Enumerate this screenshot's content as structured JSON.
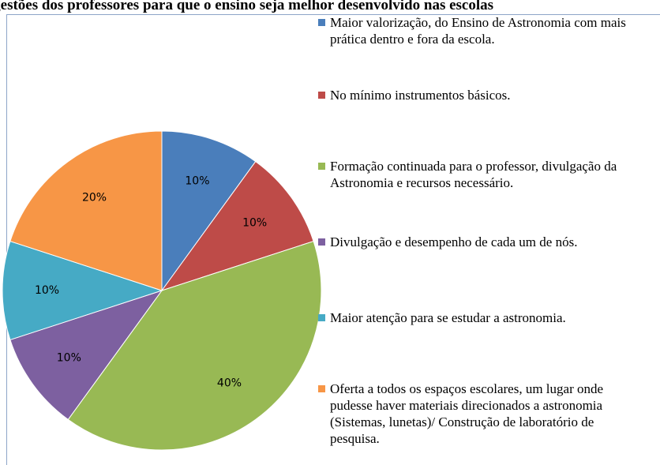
{
  "chart_data": {
    "type": "pie",
    "title": "Sugestões dos professores para que o ensino seja melhor desenvolvido nas escolas",
    "categories": [
      "Maior valorização, do Ensino de Astronomia com mais prática dentro e fora da escola.",
      "No mínimo instrumentos básicos.",
      "Formação continuada para o professor, divulgação da Astronomia e recursos necessário.",
      "Divulgação e desempenho de cada um de nós.",
      "Maior atenção para se estudar a astronomia.",
      "Oferta a todos os espaços escolares, um lugar onde pudesse haver materiais direcionados a astronomia (Sistemas, lunetas)/ Construção de laboratório de pesquisa."
    ],
    "values": [
      10,
      10,
      40,
      10,
      10,
      20
    ],
    "value_labels": [
      "10%",
      "10%",
      "40%",
      "10%",
      "10%",
      "20%"
    ],
    "colors": [
      "#4a7ebb",
      "#be4b48",
      "#98b954",
      "#7d60a0",
      "#46aac5",
      "#f79646"
    ]
  }
}
